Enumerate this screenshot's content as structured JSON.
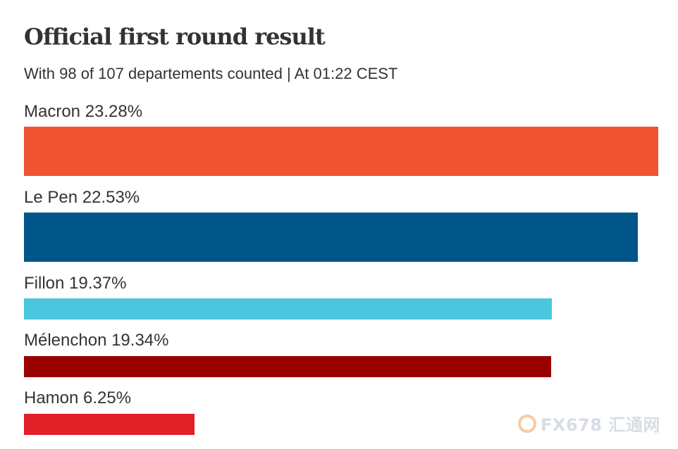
{
  "chart": {
    "title": "Official first round result",
    "subtitle": "With 98 of 107 departements counted | At 01:22 CEST"
  },
  "watermark": {
    "logo_text": "FX678 汇通网",
    "icon": "fx678-logo-icon"
  },
  "chart_data": {
    "type": "bar",
    "orientation": "horizontal",
    "title": "Official first round result",
    "subtitle": "With 98 of 107 departements counted | At 01:22 CEST",
    "categories": [
      "Macron",
      "Le Pen",
      "Fillon",
      "Mélenchon",
      "Hamon"
    ],
    "values": [
      23.28,
      22.53,
      19.37,
      19.34,
      6.25
    ],
    "labels": [
      "Macron 23.28%",
      "Le Pen 22.53%",
      "Fillon 19.37%",
      "Mélenchon 19.34%",
      "Hamon 6.25%"
    ],
    "colors": [
      "#f05331",
      "#005689",
      "#4bc6df",
      "#990000",
      "#e01f27"
    ],
    "unit": "%",
    "xlim": [
      0,
      23.28
    ],
    "grid": false,
    "legend": "none"
  }
}
